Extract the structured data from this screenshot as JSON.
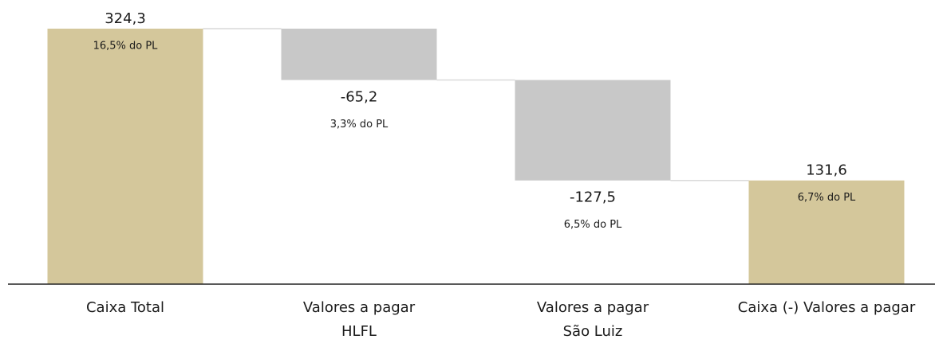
{
  "chart_data": {
    "type": "waterfall",
    "categories": [
      "Caixa Total",
      "Valores a pagar HLFL",
      "Valores a pagar São Luiz",
      "Caixa (-) Valores a pagar"
    ],
    "measures": [
      "absolute",
      "relative",
      "relative",
      "total"
    ],
    "values": [
      324.3,
      -65.2,
      -127.5,
      131.6
    ],
    "value_labels": [
      "324,3",
      "-65,2",
      "-127,5",
      "131,6"
    ],
    "annotations": [
      "16,5% do PL",
      "3,3% do PL",
      "6,5% do PL",
      "6,7% do PL"
    ],
    "colors": {
      "total": "#d4c79b",
      "decrease": "#c8c8c8"
    }
  }
}
